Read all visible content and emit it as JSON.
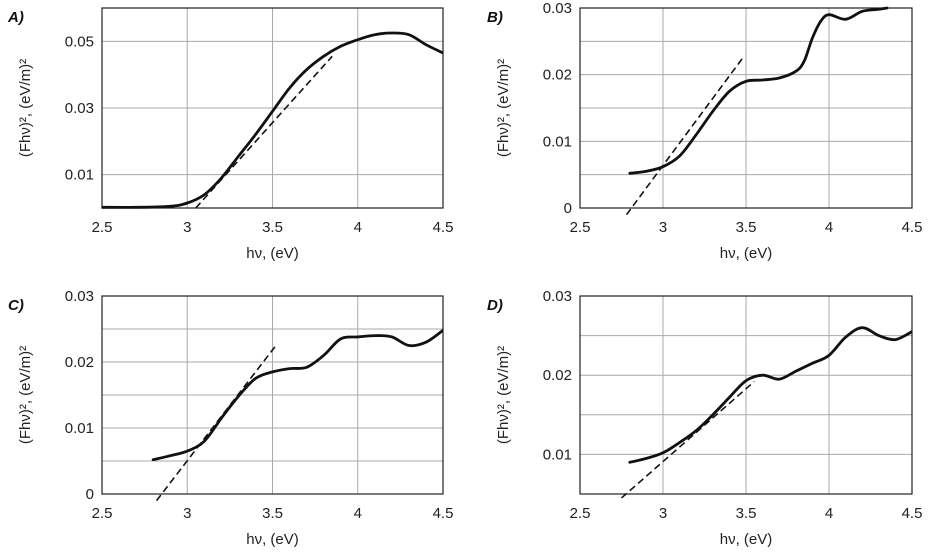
{
  "chart_data": [
    {
      "type": "line",
      "panel_label": "A)",
      "xlabel": "hν, (eV)",
      "ylabel": "(Fhν)², (eV/m)²",
      "xlim": [
        2.5,
        4.5
      ],
      "ylim": [
        0,
        0.06
      ],
      "x_ticks": [
        "2.5",
        "3",
        "3.5",
        "4",
        "4.5"
      ],
      "y_ticks": [
        "0.01",
        "0.03",
        "0.05"
      ],
      "y_tick_values": [
        0.01,
        0.03,
        0.05
      ],
      "h_grid": [
        0.01,
        0.03,
        0.05
      ],
      "series": [
        {
          "x": [
            2.5,
            2.7,
            2.9,
            3.0,
            3.1,
            3.2,
            3.3,
            3.4,
            3.5,
            3.6,
            3.7,
            3.8,
            3.9,
            4.0,
            4.1,
            4.2,
            4.3,
            4.4,
            4.5
          ],
          "y": [
            0.0002,
            0.0002,
            0.0005,
            0.0015,
            0.004,
            0.009,
            0.0155,
            0.022,
            0.029,
            0.036,
            0.0415,
            0.0455,
            0.0485,
            0.0505,
            0.052,
            0.0525,
            0.052,
            0.049,
            0.0465
          ]
        }
      ],
      "fit_line": {
        "x": [
          3.05,
          3.85
        ],
        "y": [
          0.0,
          0.0455
        ]
      }
    },
    {
      "type": "line",
      "panel_label": "B)",
      "xlabel": "hν, (eV)",
      "ylabel": "(Fhν)², (eV/m)²",
      "xlim": [
        2.5,
        4.5
      ],
      "ylim": [
        0,
        0.03
      ],
      "x_ticks": [
        "2.5",
        "3",
        "3.5",
        "4",
        "4.5"
      ],
      "y_ticks": [
        "0",
        "0.01",
        "0.02",
        "0.03"
      ],
      "y_tick_values": [
        0,
        0.01,
        0.02,
        0.03
      ],
      "h_grid": [
        0.005,
        0.01,
        0.015,
        0.02,
        0.025
      ],
      "series": [
        {
          "x": [
            2.8,
            2.9,
            3.0,
            3.1,
            3.2,
            3.3,
            3.4,
            3.5,
            3.6,
            3.7,
            3.8,
            3.85,
            3.9,
            3.95,
            4.0,
            4.1,
            4.2,
            4.3,
            4.35
          ],
          "y": [
            0.0052,
            0.0055,
            0.0062,
            0.0078,
            0.011,
            0.0145,
            0.0175,
            0.019,
            0.0192,
            0.0195,
            0.0205,
            0.022,
            0.0255,
            0.028,
            0.029,
            0.0283,
            0.0295,
            0.0298,
            0.03
          ]
        }
      ],
      "fit_line": {
        "x": [
          2.78,
          3.48
        ],
        "y": [
          -0.001,
          0.0225
        ]
      }
    },
    {
      "type": "line",
      "panel_label": "C)",
      "xlabel": "hν, (eV)",
      "ylabel": "(Fhν)², (eV/m)²",
      "xlim": [
        2.5,
        4.5
      ],
      "ylim": [
        0,
        0.03
      ],
      "x_ticks": [
        "2.5",
        "3",
        "3.5",
        "4",
        "4.5"
      ],
      "y_ticks": [
        "0",
        "0.01",
        "0.02",
        "0.03"
      ],
      "y_tick_values": [
        0,
        0.01,
        0.02,
        0.03
      ],
      "h_grid": [
        0.005,
        0.01,
        0.015,
        0.02,
        0.025
      ],
      "series": [
        {
          "x": [
            2.8,
            2.9,
            3.0,
            3.1,
            3.2,
            3.3,
            3.4,
            3.5,
            3.6,
            3.7,
            3.8,
            3.9,
            4.0,
            4.1,
            4.2,
            4.3,
            4.4,
            4.5
          ],
          "y": [
            0.0052,
            0.0058,
            0.0065,
            0.008,
            0.0115,
            0.0148,
            0.0175,
            0.0185,
            0.019,
            0.0192,
            0.021,
            0.0235,
            0.0238,
            0.024,
            0.0238,
            0.0225,
            0.023,
            0.0248
          ]
        }
      ],
      "fit_line": {
        "x": [
          2.82,
          3.52
        ],
        "y": [
          -0.001,
          0.0225
        ]
      }
    },
    {
      "type": "line",
      "panel_label": "D)",
      "xlabel": "hν, (eV)",
      "ylabel": "(Fhν)², (eV/m)²",
      "xlim": [
        2.5,
        4.5
      ],
      "ylim": [
        0.005,
        0.03
      ],
      "x_ticks": [
        "2.5",
        "3",
        "3.5",
        "4",
        "4.5"
      ],
      "y_ticks": [
        "0.01",
        "0.02",
        "0.03"
      ],
      "y_tick_values": [
        0.01,
        0.02,
        0.03
      ],
      "h_grid": [
        0.01,
        0.015,
        0.02,
        0.025
      ],
      "series": [
        {
          "x": [
            2.8,
            2.9,
            3.0,
            3.1,
            3.2,
            3.3,
            3.4,
            3.5,
            3.6,
            3.7,
            3.8,
            3.9,
            4.0,
            4.1,
            4.2,
            4.3,
            4.4,
            4.5
          ],
          "y": [
            0.009,
            0.0095,
            0.0102,
            0.0115,
            0.013,
            0.015,
            0.0172,
            0.0193,
            0.02,
            0.0195,
            0.0205,
            0.0215,
            0.0225,
            0.0248,
            0.026,
            0.025,
            0.0245,
            0.0255
          ]
        }
      ],
      "fit_line": {
        "x": [
          2.75,
          3.55
        ],
        "y": [
          0.0045,
          0.0192
        ]
      }
    }
  ]
}
